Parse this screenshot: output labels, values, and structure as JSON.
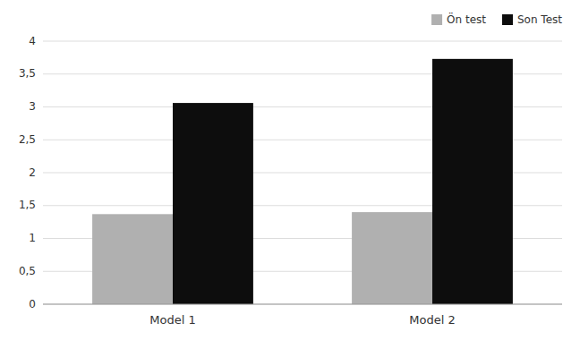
{
  "chart_data": {
    "type": "bar",
    "categories": [
      "Model 1",
      "Model 2"
    ],
    "series": [
      {
        "name": "Ön test",
        "color": "#b0b0b0",
        "values": [
          1.37,
          1.4
        ]
      },
      {
        "name": "Son Test",
        "color": "#0d0d0d",
        "values": [
          3.06,
          3.73
        ]
      }
    ],
    "ylim": [
      0,
      4
    ],
    "yticks": [
      0,
      {
        "value": 0.5,
        "label": "0,5"
      },
      1,
      {
        "value": 1.5,
        "label": "1,5"
      },
      2,
      {
        "value": 2.5,
        "label": "2,5"
      },
      3,
      {
        "value": 3.5,
        "label": "3,5"
      },
      4
    ],
    "grid": true,
    "legend": "upper right"
  }
}
